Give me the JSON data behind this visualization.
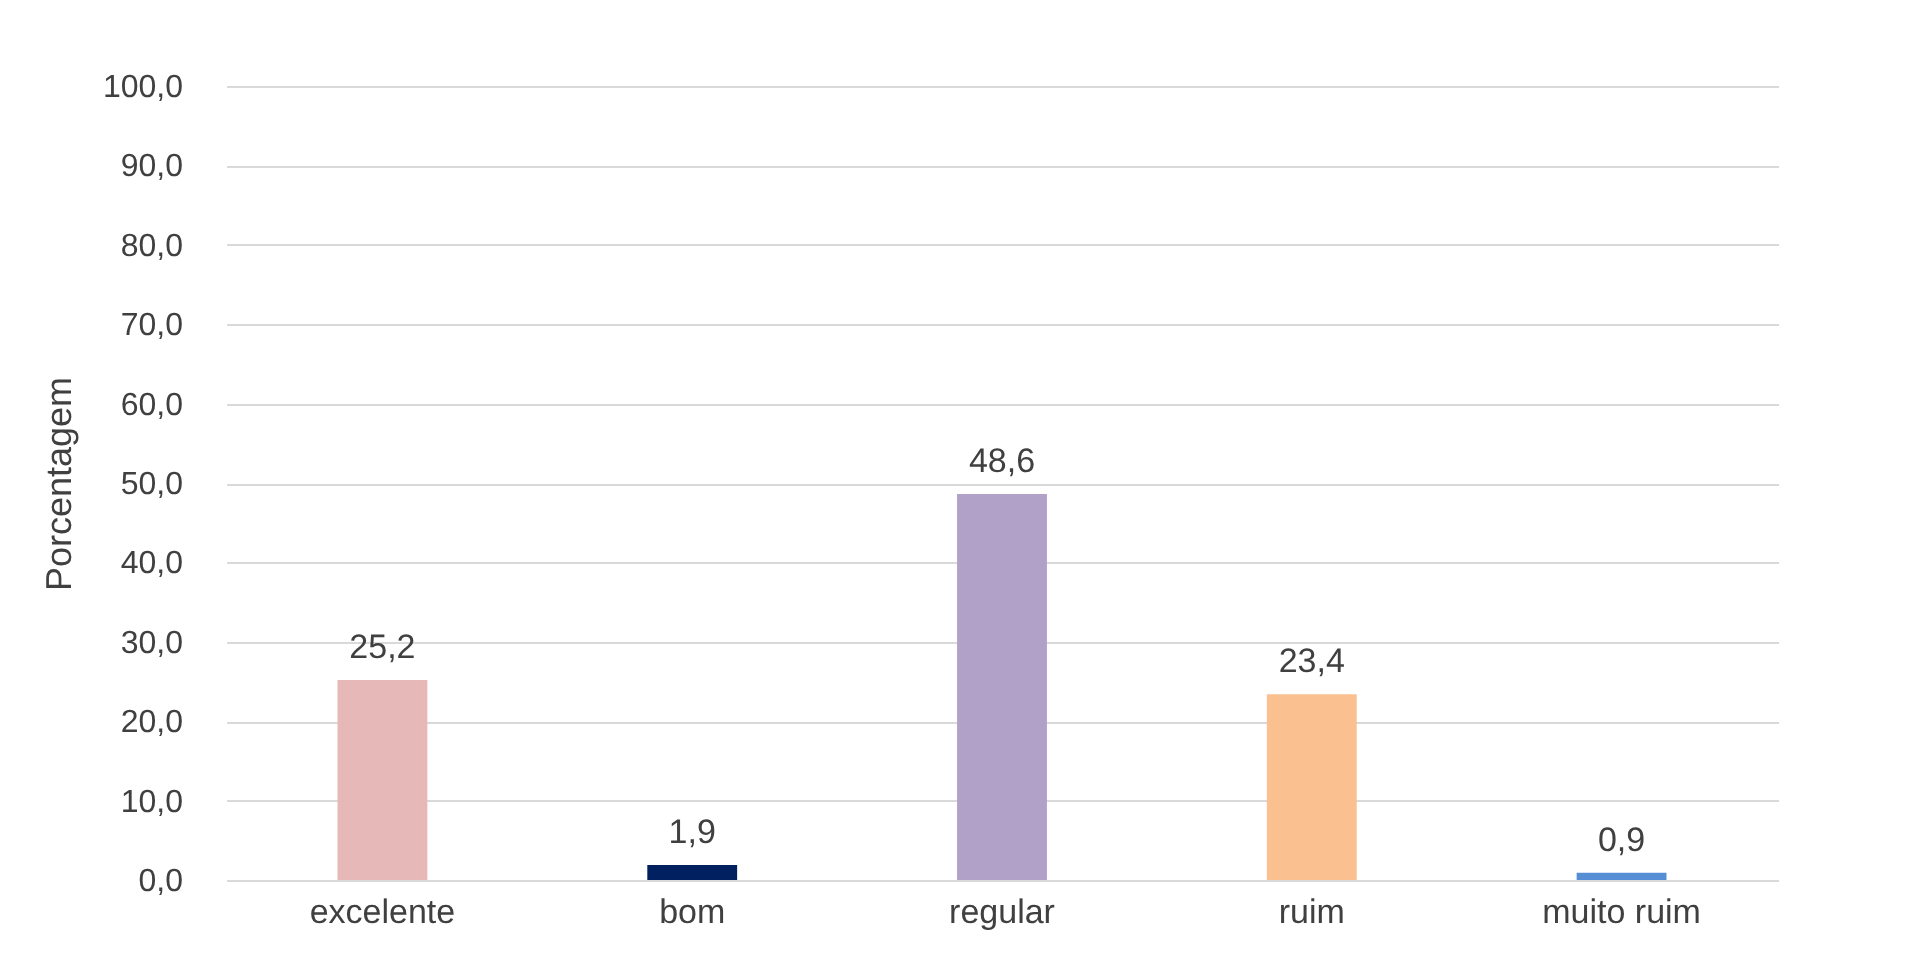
{
  "chart_data": {
    "type": "bar",
    "ylabel": "Porcentagem",
    "categories": [
      "excelente",
      "bom",
      "regular",
      "ruim",
      "muito ruim"
    ],
    "values": [
      25.2,
      1.9,
      48.6,
      23.4,
      0.9
    ],
    "colors": [
      "#e6b8b7",
      "#002060",
      "#b1a0c7",
      "#fac090",
      "#558ed5"
    ],
    "value_labels": [
      "25,2",
      "1,9",
      "48,6",
      "23,4",
      "0,9"
    ],
    "ylim": [
      0,
      100
    ],
    "yticks": [
      {
        "value": 0,
        "label": "0,0"
      },
      {
        "value": 10,
        "label": "10,0"
      },
      {
        "value": 20,
        "label": "20,0"
      },
      {
        "value": 30,
        "label": "30,0"
      },
      {
        "value": 40,
        "label": "40,0"
      },
      {
        "value": 50,
        "label": "50,0"
      },
      {
        "value": 60,
        "label": "60,0"
      },
      {
        "value": 70,
        "label": "70,0"
      },
      {
        "value": 80,
        "label": "80,0"
      },
      {
        "value": 90,
        "label": "90,0"
      },
      {
        "value": 100,
        "label": "100,0"
      }
    ],
    "grid": "y"
  }
}
